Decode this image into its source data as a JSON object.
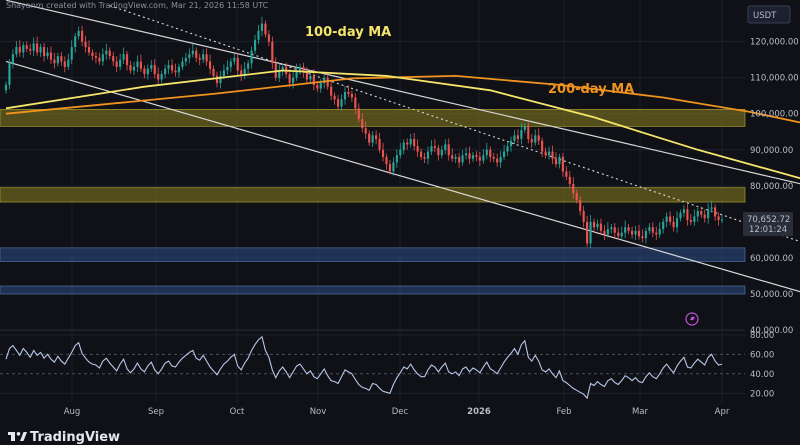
{
  "header": {
    "caption": "Shayanm created with TradingView.com, Mar 21, 2026 11:58 UTC"
  },
  "brand": {
    "name": "TradingView"
  },
  "chart_data": [
    {
      "type": "candlestick",
      "title": "",
      "currency": "USDT",
      "y_ticks": [
        "120,000.00",
        "110,000.00",
        "100,000.00",
        "90,000.00",
        "80,000.00",
        "60,000.00",
        "50,000.00",
        "40,000.00"
      ],
      "y_tick_values": [
        120000,
        110000,
        100000,
        90000,
        80000,
        60000,
        50000,
        40000
      ],
      "ylim": [
        40000,
        131000
      ],
      "x_ticks": [
        "Aug",
        "Sep",
        "Oct",
        "Nov",
        "Dec",
        "2026",
        "Feb",
        "Mar",
        "Apr"
      ],
      "last_price": "70,652.72",
      "countdown": "12:01:24",
      "grid": true,
      "annotations": {
        "ma100_label": "100-day MA",
        "ma200_label": "200-day MA"
      },
      "colors": {
        "up": "#26a69a",
        "down": "#ef5350",
        "ma100": "#f4e46a",
        "ma200": "#f0921e",
        "supply_zone": "#8a7f1e",
        "demand_zone": "#2f4f86",
        "channel": "#d8d8d8"
      },
      "zones": [
        {
          "kind": "supply",
          "from": 96500,
          "to": 101200
        },
        {
          "kind": "supply",
          "from": 75500,
          "to": 79500
        },
        {
          "kind": "demand",
          "from": 59000,
          "to": 62800
        },
        {
          "kind": "demand",
          "from": 50000,
          "to": 52200
        }
      ],
      "closes": [
        108000,
        114000,
        116500,
        118500,
        117000,
        119000,
        118000,
        117500,
        119500,
        117000,
        118500,
        116000,
        117000,
        115000,
        114000,
        116000,
        114500,
        113000,
        115000,
        118500,
        121500,
        123000,
        120000,
        118500,
        117000,
        116000,
        115500,
        114500,
        116500,
        117500,
        116000,
        114500,
        113000,
        115000,
        116500,
        113500,
        112000,
        113000,
        114500,
        112500,
        111000,
        112500,
        113500,
        111000,
        109500,
        111000,
        112500,
        113500,
        112000,
        111500,
        113000,
        114500,
        115500,
        116500,
        117500,
        115500,
        115000,
        116500,
        114500,
        112500,
        110500,
        108500,
        110500,
        112000,
        113000,
        114500,
        115500,
        112000,
        110500,
        112500,
        114000,
        117500,
        120500,
        123000,
        125000,
        122000,
        120000,
        114000,
        110000,
        112000,
        113000,
        111000,
        108500,
        110000,
        112000,
        113000,
        111500,
        109500,
        110500,
        108000,
        107000,
        108500,
        110000,
        107500,
        105000,
        104000,
        102000,
        104000,
        106000,
        105500,
        104500,
        101500,
        98500,
        96000,
        94500,
        92000,
        94000,
        93000,
        90000,
        88000,
        86000,
        84000,
        86500,
        88500,
        90000,
        92000,
        91500,
        93000,
        91000,
        89500,
        88000,
        87500,
        89500,
        91000,
        90500,
        88500,
        90000,
        91500,
        88500,
        87500,
        88000,
        86500,
        88500,
        89000,
        87500,
        88500,
        88000,
        87000,
        88500,
        90000,
        88000,
        87500,
        86500,
        88000,
        89500,
        91000,
        92500,
        94000,
        93000,
        95500,
        96500,
        93000,
        92000,
        94000,
        92500,
        89500,
        88500,
        89500,
        87500,
        86000,
        88000,
        84000,
        82500,
        80500,
        78000,
        76000,
        73000,
        70000,
        64000,
        70000,
        68500,
        69500,
        67500,
        66500,
        68000,
        68500,
        67000,
        66000,
        67000,
        68500,
        67500,
        66500,
        67500,
        66000,
        65500,
        67500,
        68500,
        67000,
        66500,
        68000,
        70000,
        71500,
        70000,
        68500,
        71000,
        72500,
        73500,
        70500,
        70000,
        71500,
        73000,
        72000,
        71000,
        73500,
        74000,
        71500,
        70500,
        70653
      ],
      "ma100": [
        [
          0,
          101500
        ],
        [
          40,
          107500
        ],
        [
          80,
          112000
        ],
        [
          110,
          110500
        ],
        [
          140,
          106500
        ],
        [
          170,
          99000
        ],
        [
          200,
          90000
        ],
        [
          230,
          82000
        ],
        [
          248,
          78800
        ]
      ],
      "ma200": [
        [
          0,
          100000
        ],
        [
          60,
          105500
        ],
        [
          100,
          109800
        ],
        [
          130,
          110500
        ],
        [
          160,
          108000
        ],
        [
          190,
          104500
        ],
        [
          215,
          100500
        ],
        [
          235,
          96500
        ],
        [
          248,
          93500
        ]
      ],
      "channel_lines": [
        {
          "style": "solid",
          "from": [
            0,
            131500
          ],
          "to": [
            248,
            76500
          ]
        },
        {
          "style": "dotted",
          "from": [
            30,
            130000
          ],
          "to": [
            248,
            58500
          ]
        },
        {
          "style": "solid",
          "from": [
            0,
            114500
          ],
          "to": [
            248,
            45500
          ]
        }
      ],
      "rsi": {
        "y_ticks": [
          "80.00",
          "60.00",
          "40.00",
          "20.00"
        ],
        "y_tick_values": [
          80,
          60,
          40,
          20
        ],
        "ylim": [
          10,
          85
        ],
        "values": [
          55,
          66,
          69,
          64,
          59,
          66,
          62,
          57,
          64,
          59,
          62,
          56,
          60,
          55,
          52,
          58,
          53,
          50,
          56,
          62,
          69,
          72,
          61,
          56,
          52,
          50,
          49,
          46,
          53,
          56,
          51,
          47,
          43,
          50,
          55,
          45,
          41,
          45,
          51,
          45,
          42,
          48,
          52,
          44,
          40,
          45,
          51,
          53,
          48,
          47,
          52,
          56,
          59,
          62,
          64,
          56,
          54,
          59,
          53,
          47,
          43,
          39,
          45,
          50,
          53,
          57,
          60,
          48,
          44,
          51,
          56,
          64,
          70,
          75,
          78,
          64,
          57,
          44,
          36,
          43,
          47,
          42,
          36,
          42,
          48,
          50,
          45,
          40,
          43,
          37,
          35,
          40,
          45,
          38,
          33,
          32,
          30,
          37,
          44,
          42,
          40,
          34,
          29,
          26,
          25,
          23,
          30,
          29,
          25,
          22,
          21,
          20,
          29,
          36,
          41,
          47,
          45,
          50,
          44,
          40,
          37,
          37,
          44,
          49,
          47,
          42,
          47,
          51,
          42,
          40,
          42,
          38,
          45,
          47,
          42,
          46,
          44,
          41,
          47,
          52,
          45,
          43,
          40,
          46,
          52,
          57,
          61,
          66,
          60,
          70,
          74,
          57,
          53,
          59,
          53,
          44,
          42,
          45,
          40,
          36,
          43,
          33,
          31,
          28,
          25,
          23,
          21,
          19,
          15,
          30,
          28,
          32,
          29,
          27,
          33,
          35,
          31,
          29,
          33,
          38,
          36,
          33,
          36,
          32,
          31,
          37,
          41,
          37,
          35,
          40,
          46,
          50,
          45,
          41,
          48,
          53,
          57,
          47,
          46,
          51,
          55,
          52,
          49,
          57,
          60,
          53,
          49,
          50
        ]
      },
      "icons": {
        "alert": "lightning-icon"
      }
    }
  ]
}
